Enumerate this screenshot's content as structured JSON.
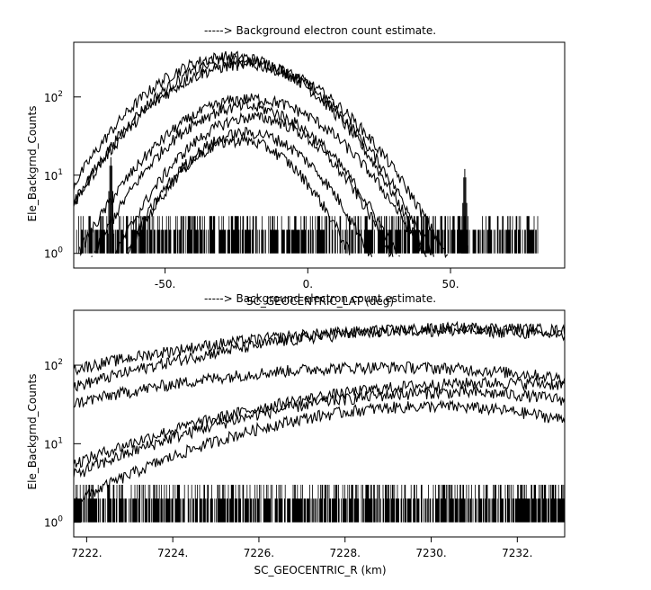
{
  "chart_data": [
    {
      "type": "line",
      "title": "-----> Background electron count estimate.",
      "xlabel": "SC_GEOCENTRIC_LAT (deg)",
      "ylabel": "Ele_Backgrnd_Counts",
      "xlim": [
        -82,
        90
      ],
      "ylim": [
        0.65,
        500
      ],
      "yscale": "log",
      "x_ticks": [
        -50,
        0,
        50
      ],
      "x_tick_labels": [
        "-50.",
        "0.",
        "50."
      ],
      "y_ticks": [
        1,
        10,
        100
      ],
      "y_tick_labels": [
        "10^0",
        "10^1",
        "10^2"
      ],
      "data_x_range": [
        -81,
        81
      ],
      "noise_floor": [
        1,
        3
      ],
      "spikes": [
        {
          "x": -69,
          "value": 17
        },
        {
          "x": 55,
          "value": 12
        }
      ],
      "series": [
        {
          "center": -27,
          "width": 20,
          "peak": 330
        },
        {
          "center": -24,
          "width": 20,
          "peak": 290
        },
        {
          "center": -22,
          "width": 21,
          "peak": 260
        },
        {
          "center": -20,
          "width": 20,
          "peak": 95
        },
        {
          "center": -22,
          "width": 18,
          "peak": 75
        },
        {
          "center": -19,
          "width": 17,
          "peak": 55
        },
        {
          "center": -21,
          "width": 16,
          "peak": 35
        },
        {
          "center": -24,
          "width": 15,
          "peak": 28
        }
      ]
    },
    {
      "type": "line",
      "title": "-----> Background electron count estimate.",
      "xlabel": "SC_GEOCENTRIC_R (km)",
      "ylabel": "Ele_Backgrnd_Counts",
      "xlim": [
        7221.7,
        7233.1
      ],
      "ylim": [
        0.65,
        500
      ],
      "yscale": "log",
      "x_ticks": [
        7222,
        7224,
        7226,
        7228,
        7230,
        7232
      ],
      "x_tick_labels": [
        "7222.",
        "7224.",
        "7226.",
        "7228.",
        "7230.",
        "7232."
      ],
      "y_ticks": [
        1,
        10,
        100
      ],
      "y_tick_labels": [
        "10^0",
        "10^1",
        "10^2"
      ],
      "noise_floor": [
        1,
        3
      ],
      "series": [
        {
          "center": 7231.0,
          "width": 5.0,
          "peak": 300
        },
        {
          "center": 7230.0,
          "width": 5.5,
          "peak": 280
        },
        {
          "center": 7229.0,
          "width": 5.0,
          "peak": 95
        },
        {
          "center": 7231.5,
          "width": 4.5,
          "peak": 60
        },
        {
          "center": 7230.5,
          "width": 4.0,
          "peak": 45
        },
        {
          "center": 7230.0,
          "width": 3.5,
          "peak": 30
        }
      ]
    }
  ]
}
